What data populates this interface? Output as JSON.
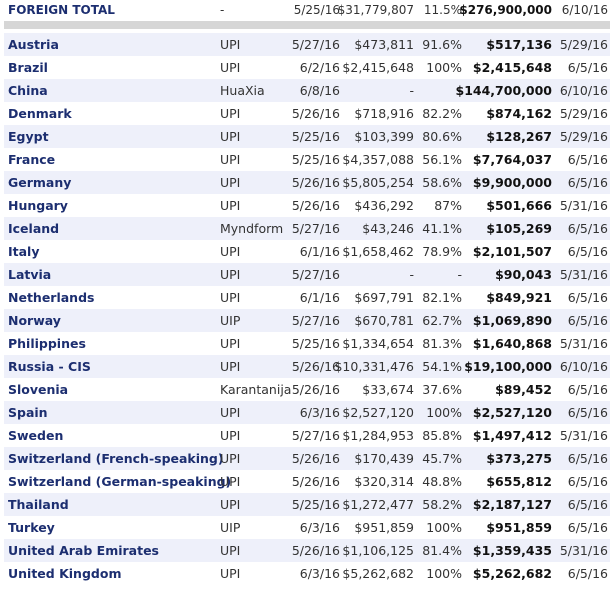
{
  "total": {
    "label": "FOREIGN TOTAL",
    "distributor": "-",
    "release": "5/25/16",
    "gross": "$31,779,807",
    "pct": "11.5%",
    "cumulative": "$276,900,000",
    "as_of": "6/10/16"
  },
  "rows": [
    {
      "country": "Austria",
      "distributor": "UPI",
      "release": "5/27/16",
      "gross": "$473,811",
      "pct": "91.6%",
      "cumulative": "$517,136",
      "as_of": "5/29/16"
    },
    {
      "country": "Brazil",
      "distributor": "UPI",
      "release": "6/2/16",
      "gross": "$2,415,648",
      "pct": "100%",
      "cumulative": "$2,415,648",
      "as_of": "6/5/16"
    },
    {
      "country": "China",
      "distributor": "HuaXia",
      "release": "6/8/16",
      "gross": "-",
      "pct": "-",
      "cumulative": "$144,700,000",
      "as_of": "6/10/16"
    },
    {
      "country": "Denmark",
      "distributor": "UPI",
      "release": "5/26/16",
      "gross": "$718,916",
      "pct": "82.2%",
      "cumulative": "$874,162",
      "as_of": "5/29/16"
    },
    {
      "country": "Egypt",
      "distributor": "UPI",
      "release": "5/25/16",
      "gross": "$103,399",
      "pct": "80.6%",
      "cumulative": "$128,267",
      "as_of": "5/29/16"
    },
    {
      "country": "France",
      "distributor": "UPI",
      "release": "5/25/16",
      "gross": "$4,357,088",
      "pct": "56.1%",
      "cumulative": "$7,764,037",
      "as_of": "6/5/16"
    },
    {
      "country": "Germany",
      "distributor": "UPI",
      "release": "5/26/16",
      "gross": "$5,805,254",
      "pct": "58.6%",
      "cumulative": "$9,900,000",
      "as_of": "6/5/16"
    },
    {
      "country": "Hungary",
      "distributor": "UPI",
      "release": "5/26/16",
      "gross": "$436,292",
      "pct": "87%",
      "cumulative": "$501,666",
      "as_of": "5/31/16"
    },
    {
      "country": "Iceland",
      "distributor": "Myndform",
      "release": "5/27/16",
      "gross": "$43,246",
      "pct": "41.1%",
      "cumulative": "$105,269",
      "as_of": "6/5/16"
    },
    {
      "country": "Italy",
      "distributor": "UPI",
      "release": "6/1/16",
      "gross": "$1,658,462",
      "pct": "78.9%",
      "cumulative": "$2,101,507",
      "as_of": "6/5/16"
    },
    {
      "country": "Latvia",
      "distributor": "UPI",
      "release": "5/27/16",
      "gross": "-",
      "pct": "-",
      "cumulative": "$90,043",
      "as_of": "5/31/16"
    },
    {
      "country": "Netherlands",
      "distributor": "UPI",
      "release": "6/1/16",
      "gross": "$697,791",
      "pct": "82.1%",
      "cumulative": "$849,921",
      "as_of": "6/5/16"
    },
    {
      "country": "Norway",
      "distributor": "UIP",
      "release": "5/27/16",
      "gross": "$670,781",
      "pct": "62.7%",
      "cumulative": "$1,069,890",
      "as_of": "6/5/16"
    },
    {
      "country": "Philippines",
      "distributor": "UPI",
      "release": "5/25/16",
      "gross": "$1,334,654",
      "pct": "81.3%",
      "cumulative": "$1,640,868",
      "as_of": "5/31/16"
    },
    {
      "country": "Russia - CIS",
      "distributor": "UPI",
      "release": "5/26/16",
      "gross": "$10,331,476",
      "pct": "54.1%",
      "cumulative": "$19,100,000",
      "as_of": "6/10/16"
    },
    {
      "country": "Slovenia",
      "distributor": "Karantanija",
      "release": "5/26/16",
      "gross": "$33,674",
      "pct": "37.6%",
      "cumulative": "$89,452",
      "as_of": "6/5/16"
    },
    {
      "country": "Spain",
      "distributor": "UPI",
      "release": "6/3/16",
      "gross": "$2,527,120",
      "pct": "100%",
      "cumulative": "$2,527,120",
      "as_of": "6/5/16"
    },
    {
      "country": "Sweden",
      "distributor": "UPI",
      "release": "5/27/16",
      "gross": "$1,284,953",
      "pct": "85.8%",
      "cumulative": "$1,497,412",
      "as_of": "5/31/16"
    },
    {
      "country": "Switzerland (French-speaking)",
      "distributor": "UPI",
      "release": "5/26/16",
      "gross": "$170,439",
      "pct": "45.7%",
      "cumulative": "$373,275",
      "as_of": "6/5/16"
    },
    {
      "country": "Switzerland (German-speaking)",
      "distributor": "UPI",
      "release": "5/26/16",
      "gross": "$320,314",
      "pct": "48.8%",
      "cumulative": "$655,812",
      "as_of": "6/5/16"
    },
    {
      "country": "Thailand",
      "distributor": "UPI",
      "release": "5/25/16",
      "gross": "$1,272,477",
      "pct": "58.2%",
      "cumulative": "$2,187,127",
      "as_of": "6/5/16"
    },
    {
      "country": "Turkey",
      "distributor": "UIP",
      "release": "6/3/16",
      "gross": "$951,859",
      "pct": "100%",
      "cumulative": "$951,859",
      "as_of": "6/5/16"
    },
    {
      "country": "United Arab Emirates",
      "distributor": "UPI",
      "release": "5/26/16",
      "gross": "$1,106,125",
      "pct": "81.4%",
      "cumulative": "$1,359,435",
      "as_of": "5/31/16"
    },
    {
      "country": "United Kingdom",
      "distributor": "UPI",
      "release": "6/3/16",
      "gross": "$5,262,682",
      "pct": "100%",
      "cumulative": "$5,262,682",
      "as_of": "6/5/16"
    }
  ]
}
